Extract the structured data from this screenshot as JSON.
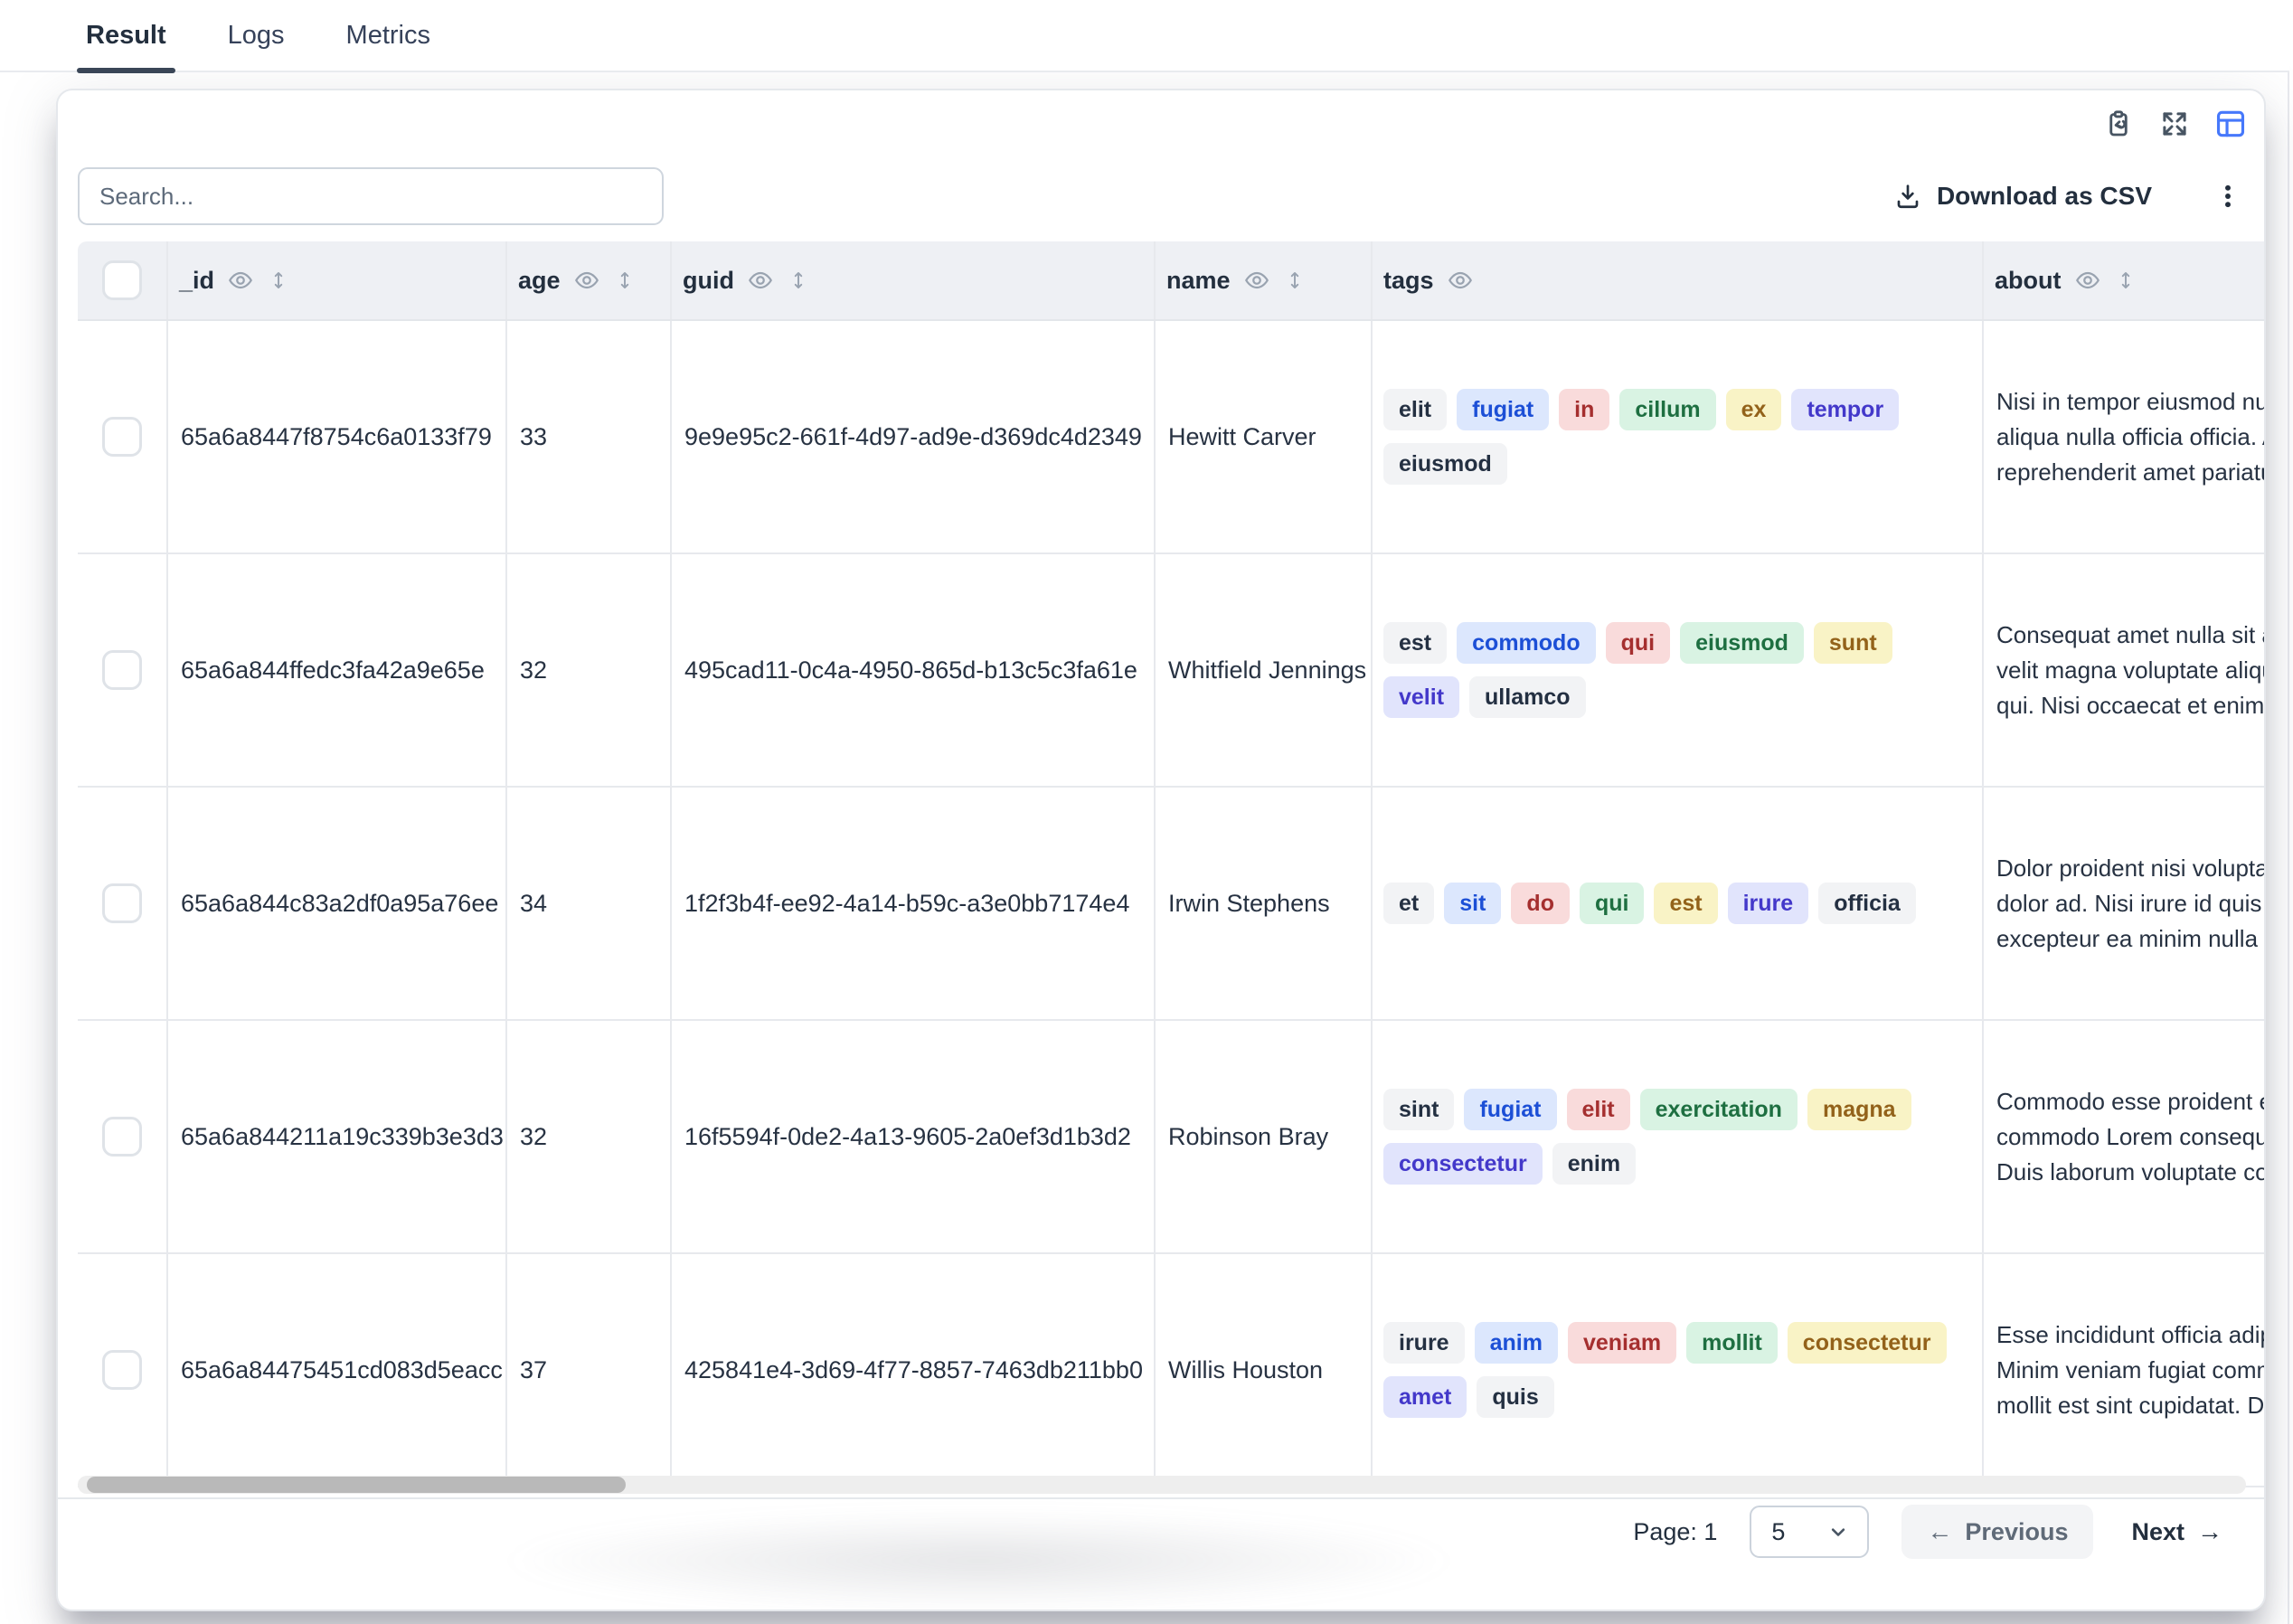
{
  "tabs": [
    {
      "label": "Result",
      "active": true
    },
    {
      "label": "Logs",
      "active": false
    },
    {
      "label": "Metrics",
      "active": false
    }
  ],
  "toolbar": {
    "search_placeholder": "Search...",
    "download_label": "Download as CSV",
    "view_icons": [
      "clipboard-copy-icon",
      "fullscreen-icon",
      "table-view-icon"
    ],
    "active_view_icon": "table-view-icon"
  },
  "table": {
    "columns": [
      {
        "key": "_id",
        "label": "_id",
        "sortable": true
      },
      {
        "key": "age",
        "label": "age",
        "sortable": true
      },
      {
        "key": "guid",
        "label": "guid",
        "sortable": true
      },
      {
        "key": "name",
        "label": "name",
        "sortable": true
      },
      {
        "key": "tags",
        "label": "tags",
        "sortable": false
      },
      {
        "key": "about",
        "label": "about",
        "sortable": true
      }
    ],
    "rows": [
      {
        "_id": "65a6a8447f8754c6a0133f79",
        "age": "33",
        "guid": "9e9e95c2-661f-4d97-ad9e-d369dc4d2349",
        "name": "Hewitt Carver",
        "tags": [
          {
            "text": "elit",
            "color": "gray"
          },
          {
            "text": "fugiat",
            "color": "blue"
          },
          {
            "text": "in",
            "color": "red"
          },
          {
            "text": "cillum",
            "color": "green"
          },
          {
            "text": "ex",
            "color": "yellow"
          },
          {
            "text": "tempor",
            "color": "purple"
          },
          {
            "text": "eiusmod",
            "color": "gray"
          }
        ],
        "about_lines": [
          "Nisi in tempor eiusmod null",
          "aliqua nulla officia officia. A",
          "reprehenderit amet pariatu"
        ]
      },
      {
        "_id": "65a6a844ffedc3fa42a9e65e",
        "age": "32",
        "guid": "495cad11-0c4a-4950-865d-b13c5c3fa61e",
        "name": "Whitfield Jennings",
        "tags": [
          {
            "text": "est",
            "color": "gray"
          },
          {
            "text": "commodo",
            "color": "blue"
          },
          {
            "text": "qui",
            "color": "red"
          },
          {
            "text": "eiusmod",
            "color": "green"
          },
          {
            "text": "sunt",
            "color": "yellow"
          },
          {
            "text": "velit",
            "color": "purple"
          },
          {
            "text": "ullamco",
            "color": "gray"
          }
        ],
        "about_lines": [
          "Consequat amet nulla sit a",
          "velit magna voluptate aliqu",
          "qui. Nisi occaecat et enim a"
        ]
      },
      {
        "_id": "65a6a844c83a2df0a95a76ee",
        "age": "34",
        "guid": "1f2f3b4f-ee92-4a14-b59c-a3e0bb7174e4",
        "name": "Irwin Stephens",
        "tags": [
          {
            "text": "et",
            "color": "gray"
          },
          {
            "text": "sit",
            "color": "blue"
          },
          {
            "text": "do",
            "color": "red"
          },
          {
            "text": "qui",
            "color": "green"
          },
          {
            "text": "est",
            "color": "yellow"
          },
          {
            "text": "irure",
            "color": "purple"
          },
          {
            "text": "officia",
            "color": "gray"
          }
        ],
        "about_lines": [
          "Dolor proident nisi voluptat",
          "dolor ad. Nisi irure id quis e",
          "excepteur ea minim nulla u"
        ]
      },
      {
        "_id": "65a6a844211a19c339b3e3d3",
        "age": "32",
        "guid": "16f5594f-0de2-4a13-9605-2a0ef3d1b3d2",
        "name": "Robinson Bray",
        "tags": [
          {
            "text": "sint",
            "color": "gray"
          },
          {
            "text": "fugiat",
            "color": "blue"
          },
          {
            "text": "elit",
            "color": "red"
          },
          {
            "text": "exercitation",
            "color": "green"
          },
          {
            "text": "magna",
            "color": "yellow"
          },
          {
            "text": "consectetur",
            "color": "purple"
          },
          {
            "text": "enim",
            "color": "gray"
          }
        ],
        "about_lines": [
          "Commodo esse proident ex",
          "commodo Lorem consequa",
          "Duis laborum voluptate cor"
        ]
      },
      {
        "_id": "65a6a84475451cd083d5eacc",
        "age": "37",
        "guid": "425841e4-3d69-4f77-8857-7463db211bb0",
        "name": "Willis Houston",
        "tags": [
          {
            "text": "irure",
            "color": "gray"
          },
          {
            "text": "anim",
            "color": "blue"
          },
          {
            "text": "veniam",
            "color": "red"
          },
          {
            "text": "mollit",
            "color": "green"
          },
          {
            "text": "consectetur",
            "color": "yellow"
          },
          {
            "text": "amet",
            "color": "purple"
          },
          {
            "text": "quis",
            "color": "gray"
          }
        ],
        "about_lines": [
          "Esse incididunt officia adip",
          "Minim veniam fugiat comm",
          "mollit est sint cupidatat. De"
        ]
      }
    ]
  },
  "pagination": {
    "page_text": "Page: 1",
    "page_size": "5",
    "prev_arrow": "←",
    "previous_label": "Previous",
    "next_label": "Next",
    "next_arrow": "→"
  },
  "colors": {
    "accent_blue": "#4678fb",
    "active_tab_underline": "#3a4657",
    "header_bg": "#eef0f4",
    "tag_colors": {
      "gray": {
        "bg": "#f2f3f5",
        "fg": "#243042"
      },
      "blue": {
        "bg": "#dce7fd",
        "fg": "#1c4fd6"
      },
      "red": {
        "bg": "#f9dbdb",
        "fg": "#a52f2f"
      },
      "green": {
        "bg": "#d9f3e3",
        "fg": "#1e6f41"
      },
      "yellow": {
        "bg": "#f9f3c6",
        "fg": "#93621a"
      },
      "purple": {
        "bg": "#e1e4fc",
        "fg": "#4338ca"
      }
    }
  }
}
